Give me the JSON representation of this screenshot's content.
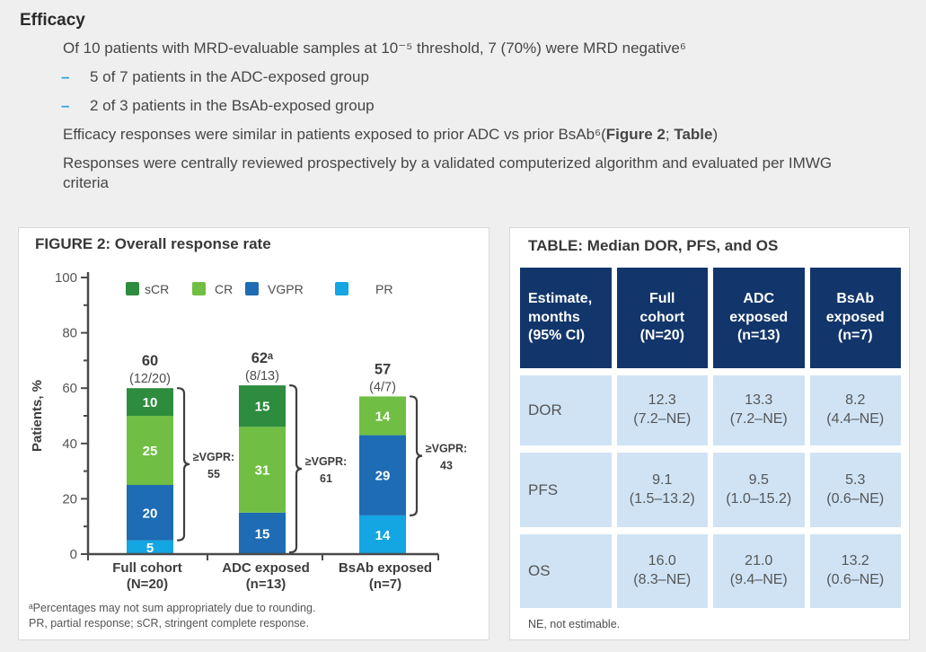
{
  "colors": {
    "page_bg": "#f0eff0",
    "panel_border": "#d9d9d9",
    "bullet_accent": "#29a3dc",
    "table_header_bg": "#12366b",
    "table_cell_bg": "#cfe3f5",
    "scr_green": "#2e8c3f",
    "cr_green": "#70bf44",
    "vgpr_blue": "#1d6cb4",
    "pr_cyan": "#14a5e3"
  },
  "efficacy": {
    "heading": "Efficacy",
    "bullet1": "Of 10 patients with MRD-evaluable samples at 10⁻⁵ threshold, 7 (70%) were MRD negative⁶",
    "sub_bullets": [
      "5 of 7 patients in the ADC-exposed group",
      "2 of 3 patients in the BsAb-exposed group"
    ],
    "bullet2": {
      "pre": "Efficacy responses were similar in patients exposed to prior ADC vs prior BsAb⁶(",
      "bold1": "Figure 2",
      "mid": "; ",
      "bold2": "Table",
      "post": ")"
    },
    "bullet3": "Responses were centrally reviewed prospectively by a validated computerized algorithm and evaluated per IMWG criteria"
  },
  "figure": {
    "title": "FIGURE 2: Overall response rate",
    "footnote1": "ᵃPercentages may not sum appropriately due to rounding.",
    "footnote2": "PR, partial response; sCR, stringent complete response."
  },
  "chart_data": {
    "type": "stacked-bar",
    "title": "FIGURE 2: Overall response rate",
    "ylabel": "Patients, %",
    "ylim": [
      0,
      100
    ],
    "ytick_major_step": 20,
    "ytick_minor_step": 10,
    "legend_order": [
      "sCR",
      "CR",
      "VGPR",
      "PR"
    ],
    "categories": [
      {
        "line1": "Full cohort",
        "line2": "(N=20)"
      },
      {
        "line1": "ADC exposed",
        "line2": "(n=13)"
      },
      {
        "line1": "BsAb exposed",
        "line2": "(n=7)"
      }
    ],
    "series": [
      {
        "name": "PR",
        "color": "#14a5e3",
        "values": [
          5,
          0,
          14
        ]
      },
      {
        "name": "VGPR",
        "color": "#1d6cb4",
        "values": [
          20,
          15,
          29
        ]
      },
      {
        "name": "CR",
        "color": "#70bf44",
        "values": [
          25,
          31,
          14
        ]
      },
      {
        "name": "sCR",
        "color": "#2e8c3f",
        "values": [
          10,
          15,
          0
        ]
      }
    ],
    "bar_totals": [
      "60",
      "62ᵃ",
      "57"
    ],
    "bar_fractions": [
      "(12/20)",
      "(8/13)",
      "(4/7)"
    ],
    "braces": [
      {
        "label_line1": "≥VGPR:",
        "label_line2": "55",
        "from": 5,
        "to": 60
      },
      {
        "label_line1": "≥VGPR:",
        "label_line2": "61",
        "from": 0,
        "to": 61
      },
      {
        "label_line1": "≥VGPR:",
        "label_line2": "43",
        "from": 14,
        "to": 57
      }
    ]
  },
  "table": {
    "title": "TABLE: Median DOR, PFS, and OS",
    "header": [
      "Estimate,\nmonths\n(95% CI)",
      "Full\ncohort\n(N=20)",
      "ADC\nexposed\n(n=13)",
      "BsAb\nexposed\n(n=7)"
    ],
    "rows": [
      {
        "label": "DOR",
        "values": [
          "12.3\n(7.2–NE)",
          "13.3\n(7.2–NE)",
          "8.2\n(4.4–NE)"
        ]
      },
      {
        "label": "PFS",
        "values": [
          "9.1\n(1.5–13.2)",
          "9.5\n(1.0–15.2)",
          "5.3\n(0.6–NE)"
        ]
      },
      {
        "label": "OS",
        "values": [
          "16.0\n(8.3–NE)",
          "21.0\n(9.4–NE)",
          "13.2\n(0.6–NE)"
        ]
      }
    ],
    "footnote": "NE, not estimable."
  }
}
